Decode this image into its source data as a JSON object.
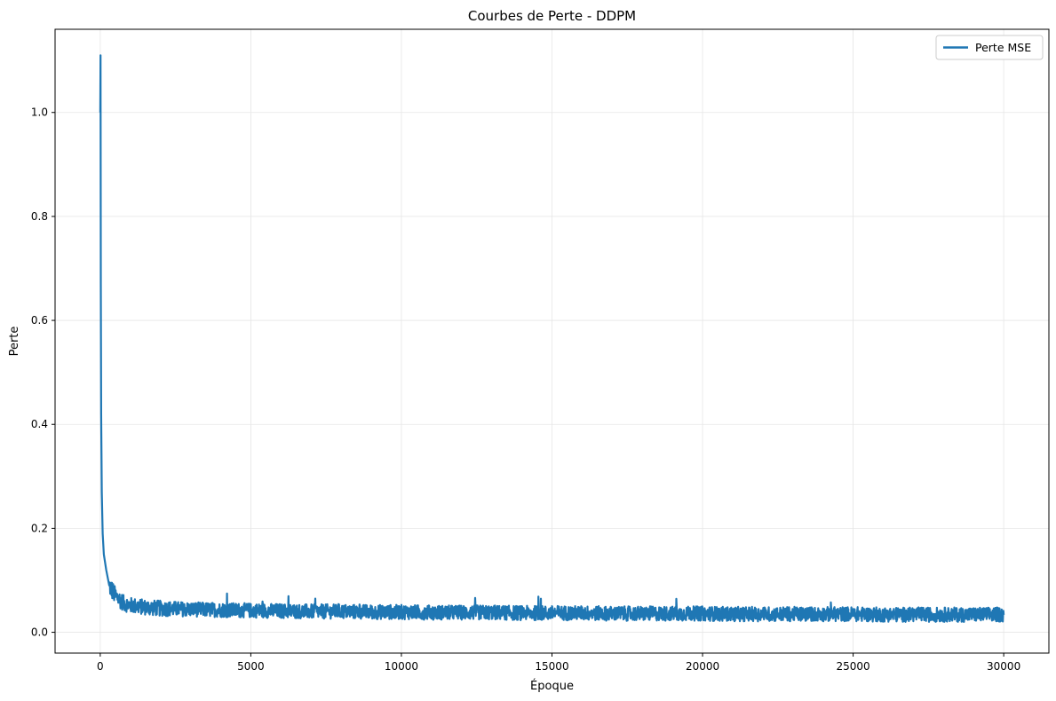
{
  "chart_data": {
    "type": "line",
    "title": "Courbes de Perte - DDPM",
    "xlabel": "Époque",
    "ylabel": "Perte",
    "xlim": [
      -1500,
      31500
    ],
    "ylim": [
      -0.04,
      1.16
    ],
    "x_ticks": [
      0,
      5000,
      10000,
      15000,
      20000,
      25000,
      30000
    ],
    "x_tick_labels": [
      "0",
      "5000",
      "10000",
      "15000",
      "20000",
      "25000",
      "30000"
    ],
    "y_ticks": [
      0.0,
      0.2,
      0.4,
      0.6,
      0.8,
      1.0
    ],
    "y_tick_labels": [
      "0.0",
      "0.2",
      "0.4",
      "0.6",
      "0.8",
      "1.0"
    ],
    "grid": true,
    "legend_position": "top-right",
    "series": [
      {
        "name": "Perte MSE",
        "color": "#1f77b4",
        "x": [
          0,
          10,
          20,
          30,
          50,
          80,
          120,
          200,
          300,
          500,
          800,
          1000,
          1500,
          2000,
          3000,
          4000,
          5000,
          6000,
          7000,
          8000,
          9000,
          10000,
          11000,
          12000,
          13000,
          14000,
          15000,
          16000,
          17000,
          18000,
          19000,
          20000,
          21000,
          22000,
          23000,
          24000,
          25000,
          26000,
          27000,
          28000,
          29000,
          30000
        ],
        "y": [
          1.0,
          1.11,
          0.67,
          0.42,
          0.27,
          0.19,
          0.15,
          0.12,
          0.09,
          0.07,
          0.055,
          0.052,
          0.048,
          0.046,
          0.044,
          0.043,
          0.042,
          0.041,
          0.04,
          0.04,
          0.039,
          0.039,
          0.038,
          0.038,
          0.038,
          0.037,
          0.037,
          0.037,
          0.036,
          0.036,
          0.036,
          0.036,
          0.035,
          0.035,
          0.035,
          0.035,
          0.035,
          0.034,
          0.034,
          0.034,
          0.034,
          0.034
        ],
        "noise_band": [
          0.04,
          0.05,
          0.06,
          0.06,
          0.06,
          0.05,
          0.05,
          0.04,
          0.04,
          0.035,
          0.03,
          0.03,
          0.03,
          0.03,
          0.028,
          0.028,
          0.028,
          0.028,
          0.028,
          0.028,
          0.028,
          0.028,
          0.028,
          0.028,
          0.028,
          0.028,
          0.028,
          0.028,
          0.028,
          0.028,
          0.028,
          0.028,
          0.028,
          0.028,
          0.028,
          0.028,
          0.028,
          0.028,
          0.028,
          0.028,
          0.028,
          0.028
        ]
      }
    ]
  }
}
